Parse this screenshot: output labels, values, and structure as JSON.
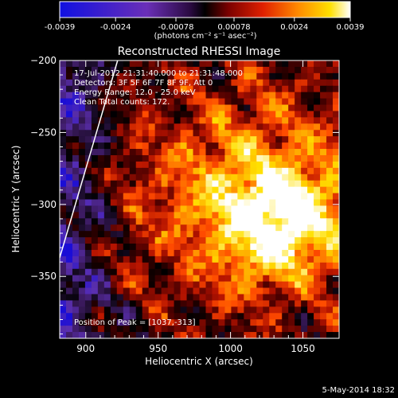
{
  "colorbar": {
    "tick_labels": [
      "-0.0039",
      "-0.0024",
      "-0.00078",
      "0.00078",
      "0.0024",
      "0.0039"
    ],
    "tick_values": [
      -0.0039,
      -0.0024,
      -0.00078,
      0.00078,
      0.0024,
      0.0039
    ],
    "range": [
      -0.0039,
      0.0039
    ],
    "units_label": "(photons cm⁻² s⁻¹ asec⁻²)"
  },
  "chart_data": {
    "type": "heatmap",
    "title": "Reconstructed RHESSI Image",
    "xlabel": "Heliocentric X (arcsec)",
    "ylabel": "Heliocentric Y (arcsec)",
    "xlim": [
      882,
      1075
    ],
    "ylim": [
      -393,
      -200
    ],
    "x_ticks": [
      900,
      950,
      1000,
      1050
    ],
    "y_ticks": [
      -200,
      -250,
      -300,
      -350
    ],
    "x_tick_labels": [
      "900",
      "950",
      "1000",
      "1050"
    ],
    "y_tick_labels": [
      "−200",
      "−250",
      "−300",
      "−350"
    ],
    "annotations": [
      "17-Jul-2012 21:31:40.000 to 21:31:48.000",
      "Detectors: 3F 5F 6F 7F 8F 9F, Att 0",
      "Energy Range: 12.0 - 25.0 keV",
      "Clean    Total counts: 172."
    ],
    "peak_label": "Position of Peak = [1037,-313]",
    "peak": {
      "x": 1037,
      "y": -313
    },
    "limb_line": {
      "x": [
        922,
        882
      ],
      "y": [
        -200,
        -337
      ]
    },
    "colormap": [
      "#1a0dd6",
      "#5a2fb0",
      "#3b1a5e",
      "#000000",
      "#4a0000",
      "#b31200",
      "#ff4a00",
      "#ffa000",
      "#ffe000",
      "#ffffff"
    ]
  },
  "footer": {
    "timestamp": "5-May-2014 18:32"
  }
}
